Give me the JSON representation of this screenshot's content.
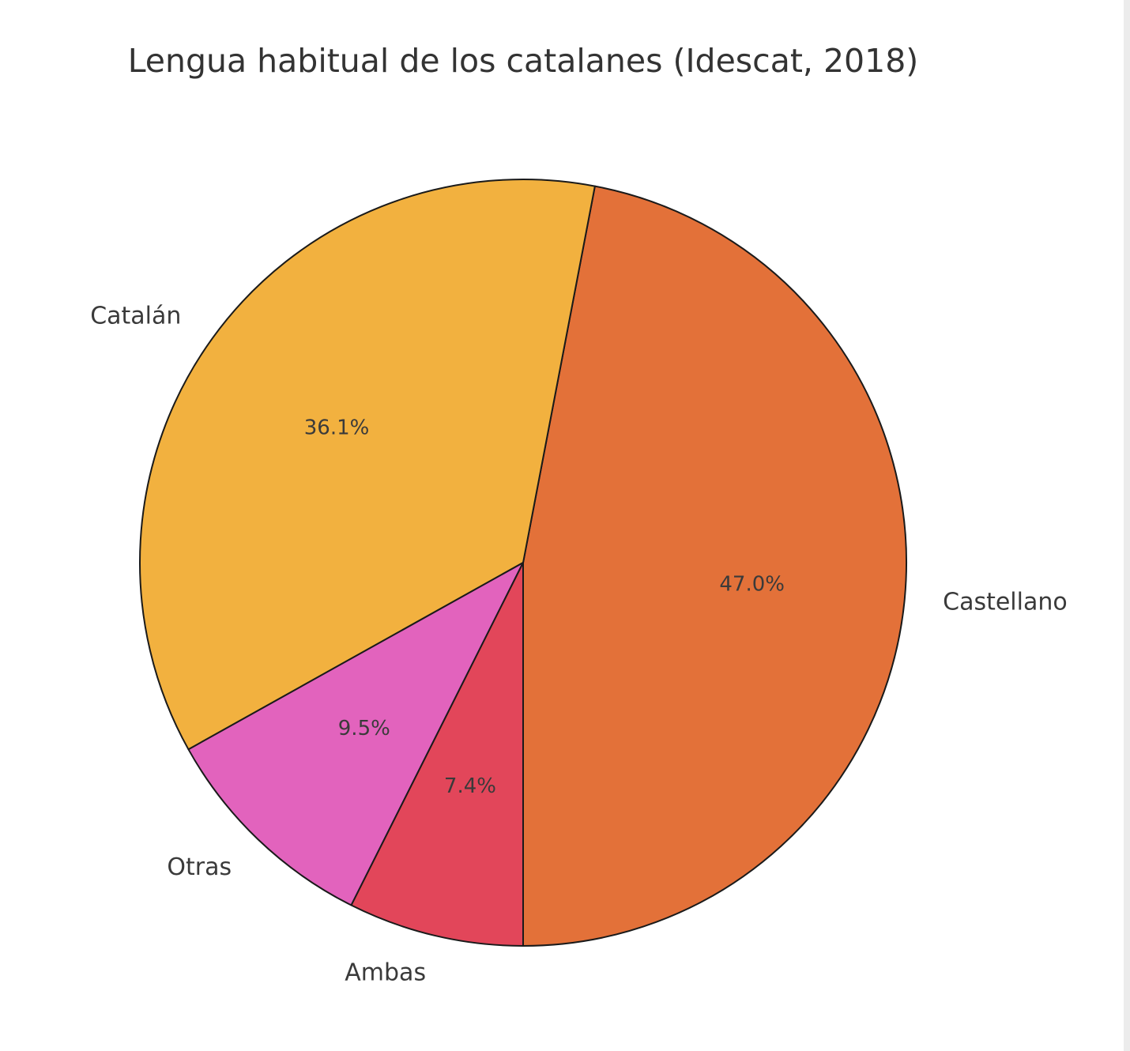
{
  "chart_data": {
    "type": "pie",
    "title": "Lengua habitual de los catalanes (Idescat, 2018)",
    "categories": [
      "Castellano",
      "Catalán",
      "Otras",
      "Ambas"
    ],
    "values": [
      47.0,
      36.1,
      9.5,
      7.4
    ],
    "value_labels": [
      "47.0%",
      "36.1%",
      "9.5%",
      "7.4%"
    ],
    "colors": [
      "#E37139",
      "#F2B13F",
      "#E263BD",
      "#E2465A"
    ],
    "start_angle_deg": 270,
    "direction": "counterclockwise",
    "legend": "none"
  }
}
